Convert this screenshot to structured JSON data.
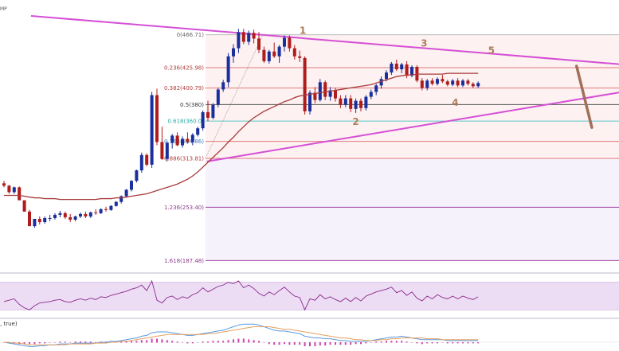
{
  "header": {
    "corner_label": "MP"
  },
  "colors": {
    "bull": "#1a2f9c",
    "bear": "#b01c1c",
    "ma": "#a83b3b",
    "trend": "#d54fd5",
    "projection": "#a0705a",
    "wave_label": "#b07e5a",
    "fib_line": "#e07a7a",
    "fib_line_ext": "#a040a0",
    "fib_label": "#b03a3a",
    "fib_label_ext": "#8a3a8a",
    "fib_618_line": "#5ec8c8",
    "fib_618_label": "#2aa8a8",
    "fib_764_label": "#3a7ac0",
    "rsi_band": "#ecdcf4",
    "rsi_line": "#8a2a8a",
    "macd_a": "#5a9be0",
    "macd_b": "#e8a060",
    "hist": "#cc44aa"
  },
  "chart_data": {
    "type": "candlestick",
    "title": "",
    "grid": false,
    "ylim": [
      175,
      490
    ],
    "fib_levels": [
      {
        "ratio": 0,
        "text": "0(466.71)",
        "price": 466.71
      },
      {
        "ratio": 0.236,
        "text": "0.236(425.98)",
        "price": 425.98
      },
      {
        "ratio": 0.382,
        "text": "0.382(400.79)",
        "price": 400.79
      },
      {
        "ratio": 0.5,
        "text": "0.5(380)",
        "price": 380.4
      },
      {
        "ratio": 0.618,
        "text": "0.618(360.0)",
        "price": 360.0
      },
      {
        "ratio": 0.764,
        "text": "0.764(334.86)",
        "price": 334.86
      },
      {
        "ratio": 0.886,
        "text": "0.886(313.81)",
        "price": 313.81
      },
      {
        "ratio": 1.236,
        "text": "1.236(253.40)",
        "price": 253.4
      },
      {
        "ratio": 1.618,
        "text": "1.618(187.48)",
        "price": 187.48
      }
    ],
    "wave_labels": [
      "1",
      "2",
      "3",
      "4",
      "5"
    ],
    "candles": [
      [
        283,
        286,
        278,
        280
      ],
      [
        280,
        281,
        270,
        272
      ],
      [
        272,
        279,
        270,
        278
      ],
      [
        278,
        279,
        262,
        262
      ],
      [
        262,
        262,
        248,
        248
      ],
      [
        248,
        250,
        230,
        230
      ],
      [
        230,
        239,
        228,
        239
      ],
      [
        239,
        242,
        232,
        235
      ],
      [
        235,
        242,
        233,
        240
      ],
      [
        240,
        244,
        236,
        240
      ],
      [
        240,
        246,
        238,
        244
      ],
      [
        244,
        249,
        241,
        246
      ],
      [
        246,
        248,
        239,
        241
      ],
      [
        241,
        245,
        235,
        238
      ],
      [
        238,
        243,
        236,
        242
      ],
      [
        242,
        247,
        240,
        245
      ],
      [
        245,
        248,
        240,
        242
      ],
      [
        242,
        248,
        240,
        247
      ],
      [
        247,
        251,
        244,
        246
      ],
      [
        246,
        252,
        245,
        251
      ],
      [
        251,
        254,
        248,
        250
      ],
      [
        250,
        256,
        249,
        255
      ],
      [
        255,
        261,
        254,
        260
      ],
      [
        260,
        268,
        258,
        267
      ],
      [
        267,
        276,
        265,
        275
      ],
      [
        275,
        287,
        273,
        286
      ],
      [
        286,
        300,
        284,
        299
      ],
      [
        299,
        321,
        296,
        318
      ],
      [
        318,
        320,
        304,
        306
      ],
      [
        306,
        396,
        302,
        392
      ],
      [
        392,
        400,
        330,
        334
      ],
      [
        334,
        353,
        312,
        313
      ],
      [
        313,
        335,
        310,
        333
      ],
      [
        333,
        344,
        326,
        342
      ],
      [
        342,
        346,
        329,
        330
      ],
      [
        330,
        341,
        327,
        338
      ],
      [
        338,
        346,
        332,
        334
      ],
      [
        334,
        345,
        330,
        343
      ],
      [
        343,
        353,
        341,
        351
      ],
      [
        351,
        373,
        348,
        371
      ],
      [
        371,
        385,
        360,
        364
      ],
      [
        364,
        382,
        362,
        380
      ],
      [
        380,
        401,
        377,
        399
      ],
      [
        399,
        411,
        396,
        408
      ],
      [
        408,
        444,
        402,
        440
      ],
      [
        440,
        455,
        432,
        450
      ],
      [
        450,
        474,
        444,
        470
      ],
      [
        470,
        474,
        455,
        458
      ],
      [
        458,
        472,
        454,
        469
      ],
      [
        469,
        473,
        456,
        462
      ],
      [
        462,
        470,
        444,
        448
      ],
      [
        448,
        452,
        432,
        434
      ],
      [
        434,
        448,
        431,
        446
      ],
      [
        446,
        457,
        438,
        440
      ],
      [
        440,
        454,
        432,
        452
      ],
      [
        452,
        466,
        446,
        463
      ],
      [
        463,
        466,
        446,
        450
      ],
      [
        450,
        454,
        436,
        440
      ],
      [
        440,
        447,
        433,
        438
      ],
      [
        438,
        440,
        368,
        372
      ],
      [
        372,
        398,
        368,
        395
      ],
      [
        395,
        402,
        382,
        386
      ],
      [
        386,
        412,
        384,
        408
      ],
      [
        408,
        410,
        386,
        390
      ],
      [
        390,
        402,
        385,
        398
      ],
      [
        398,
        401,
        384,
        388
      ],
      [
        388,
        392,
        376,
        380
      ],
      [
        380,
        392,
        377,
        388
      ],
      [
        388,
        392,
        371,
        375
      ],
      [
        375,
        388,
        370,
        385
      ],
      [
        385,
        388,
        372,
        376
      ],
      [
        376,
        392,
        373,
        390
      ],
      [
        390,
        399,
        387,
        396
      ],
      [
        396,
        406,
        392,
        404
      ],
      [
        404,
        415,
        400,
        412
      ],
      [
        412,
        423,
        409,
        420
      ],
      [
        420,
        433,
        417,
        431
      ],
      [
        431,
        436,
        422,
        424
      ],
      [
        424,
        432,
        419,
        430
      ],
      [
        430,
        434,
        413,
        416
      ],
      [
        416,
        429,
        414,
        427
      ],
      [
        427,
        429,
        408,
        410
      ],
      [
        410,
        413,
        398,
        401
      ],
      [
        401,
        412,
        398,
        410
      ],
      [
        410,
        413,
        404,
        406
      ],
      [
        406,
        414,
        404,
        412
      ],
      [
        412,
        417,
        407,
        409
      ],
      [
        409,
        411,
        403,
        405
      ],
      [
        405,
        412,
        403,
        410
      ],
      [
        410,
        413,
        402,
        404
      ],
      [
        404,
        412,
        402,
        410
      ],
      [
        410,
        412,
        404,
        406
      ],
      [
        406,
        408,
        401,
        403
      ],
      [
        403,
        409,
        401,
        407
      ]
    ],
    "ma_series": [
      268,
      268,
      268,
      268,
      267,
      266,
      265,
      265,
      264,
      264,
      264,
      263,
      263,
      263,
      263,
      263,
      263,
      263,
      263,
      264,
      264,
      264,
      265,
      265,
      266,
      267,
      268,
      269,
      270,
      272,
      274,
      276,
      278,
      280,
      282,
      285,
      288,
      292,
      297,
      303,
      309,
      315,
      321,
      327,
      334,
      340,
      347,
      353,
      359,
      364,
      368,
      372,
      375,
      378,
      381,
      384,
      386,
      389,
      391,
      392,
      393,
      394,
      395,
      396,
      397,
      398,
      399,
      400,
      401,
      402,
      403,
      404,
      405,
      407,
      409,
      411,
      413,
      415,
      416,
      417,
      417,
      418,
      418,
      418,
      418,
      418,
      418,
      419,
      419,
      419,
      419,
      419,
      419,
      419
    ],
    "trendlines": {
      "upper": [
        [
          0,
          5.3,
          490
        ],
        [
          1,
          121.3,
          430
        ]
      ],
      "lower": [
        [
          0,
          39.8,
          310
        ],
        [
          1,
          121.3,
          396
        ]
      ]
    },
    "projection": [
      [
        112.3,
        428
      ],
      [
        115.3,
        352
      ]
    ],
    "rsi": {
      "ylim": [
        20,
        80
      ],
      "values": [
        42,
        44,
        46,
        38,
        33,
        30,
        36,
        40,
        41,
        42,
        44,
        45,
        42,
        41,
        44,
        46,
        44,
        47,
        45,
        49,
        48,
        51,
        53,
        55,
        57,
        60,
        62,
        66,
        58,
        72,
        44,
        40,
        48,
        50,
        45,
        49,
        47,
        52,
        55,
        62,
        56,
        60,
        64,
        66,
        70,
        68,
        72,
        62,
        66,
        61,
        54,
        50,
        56,
        52,
        58,
        63,
        56,
        50,
        48,
        30,
        46,
        44,
        52,
        46,
        49,
        45,
        42,
        47,
        42,
        48,
        43,
        50,
        53,
        56,
        58,
        60,
        63,
        55,
        58,
        51,
        56,
        47,
        43,
        50,
        46,
        52,
        48,
        46,
        50,
        46,
        50,
        47,
        45,
        49
      ]
    },
    "macd": {
      "macd": [
        0,
        -1,
        -2,
        -3,
        -4,
        -5,
        -5,
        -4,
        -4,
        -3,
        -3,
        -2,
        -2,
        -2,
        -1,
        -1,
        -1,
        -1,
        -1,
        0,
        0,
        1,
        1,
        2,
        3,
        4,
        5,
        7,
        8,
        11,
        12,
        12,
        12,
        11,
        10,
        9,
        8,
        8,
        9,
        10,
        11,
        12,
        13,
        14,
        16,
        18,
        20,
        21,
        21,
        21,
        20,
        18,
        16,
        14,
        13,
        13,
        12,
        11,
        10,
        7,
        6,
        5,
        5,
        4,
        4,
        3,
        2,
        2,
        1,
        1,
        1,
        1,
        2,
        3,
        4,
        5,
        6,
        6,
        7,
        6,
        5,
        4,
        3,
        3,
        3,
        3,
        3,
        2,
        2,
        2,
        2,
        2,
        2,
        2
      ],
      "signal": [
        0,
        0,
        -1,
        -1,
        -2,
        -3,
        -3,
        -3,
        -3,
        -3,
        -3,
        -3,
        -3,
        -2,
        -2,
        -2,
        -2,
        -2,
        -1,
        -1,
        -1,
        0,
        0,
        1,
        1,
        2,
        3,
        4,
        5,
        6,
        7,
        8,
        9,
        9,
        9,
        9,
        9,
        9,
        9,
        9,
        10,
        10,
        11,
        12,
        13,
        14,
        15,
        16,
        17,
        18,
        18,
        18,
        18,
        17,
        16,
        15,
        15,
        14,
        13,
        12,
        11,
        10,
        9,
        8,
        7,
        6,
        5,
        5,
        4,
        3,
        3,
        2,
        2,
        2,
        3,
        3,
        4,
        4,
        5,
        5,
        5,
        5,
        5,
        4,
        4,
        4,
        3,
        3,
        3,
        3,
        3,
        3,
        3,
        3
      ],
      "hist_ylim": [
        -8,
        8
      ],
      "indicator_label": ", true)"
    }
  }
}
